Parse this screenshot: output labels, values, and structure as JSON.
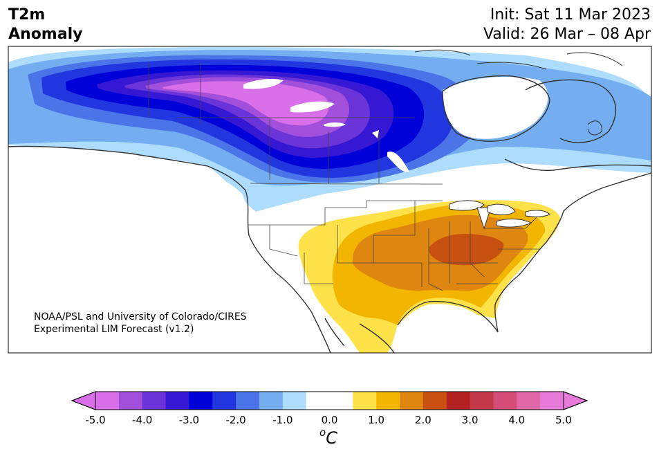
{
  "header": {
    "title_line1": "T2m",
    "title_line2": "Anomaly",
    "init": "Init: Sat 11 Mar 2023",
    "valid": "Valid: 26 Mar – 08 Apr"
  },
  "credit": {
    "line1": "NOAA/PSL and University of Colorado/CIRES",
    "line2": "Experimental LIM Forecast (v1.2)"
  },
  "colorbar": {
    "unit_base": "C",
    "unit_prefix": "o",
    "ticks": [
      "-5.0",
      "-4.0",
      "-3.0",
      "-2.0",
      "-1.0",
      "0.0",
      "1.0",
      "2.0",
      "3.0",
      "4.0",
      "5.0"
    ],
    "colors": [
      "#d96fe8",
      "#a24fdc",
      "#6a34d8",
      "#3618d4",
      "#0000d8",
      "#2236e0",
      "#4b74e8",
      "#74aef0",
      "#addcfc",
      "#ffffff",
      "#ffffff",
      "#ffe24a",
      "#f2b600",
      "#de8610",
      "#c85010",
      "#b22222",
      "#c23848",
      "#d44c78",
      "#e068a8",
      "#e67ad8"
    ],
    "under_color": "#d96fe8",
    "over_color": "#e67ad8"
  },
  "map": {
    "region": "North America",
    "projection": "Lambert conformal",
    "cold_anomaly_region": "Northwest Canada, Alaska border",
    "warm_anomaly_region": "Central and Eastern United States"
  }
}
